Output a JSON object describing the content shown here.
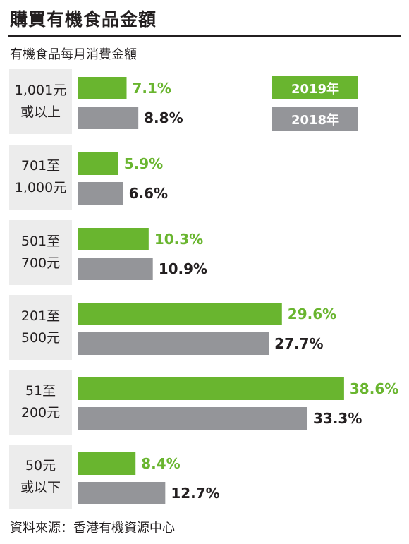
{
  "header": {
    "title": "購買有機食品金額",
    "subtitle": "有機食品每月消費金額"
  },
  "footer": {
    "source": "資料來源：香港有機資源中心"
  },
  "legend": {
    "items": [
      {
        "label": "2019年"
      },
      {
        "label": "2018年"
      }
    ]
  },
  "colors": {
    "series_2019": "#69b52f",
    "series_2018": "#949599",
    "category_box": "#ececec",
    "text": "#231f20"
  },
  "chart_data": {
    "type": "bar",
    "orientation": "horizontal",
    "value_unit": "%",
    "categories": [
      "1,001元\n或以上",
      "701至\n1,000元",
      "501至\n700元",
      "201至\n500元",
      "51至\n200元",
      "50元\n或以下"
    ],
    "series": [
      {
        "name": "2019年",
        "values": [
          7.1,
          5.9,
          10.3,
          29.6,
          38.6,
          8.4
        ]
      },
      {
        "name": "2018年",
        "values": [
          8.8,
          6.6,
          10.9,
          27.7,
          33.3,
          12.7
        ]
      }
    ],
    "legend_position": "top-right",
    "grid": false
  }
}
